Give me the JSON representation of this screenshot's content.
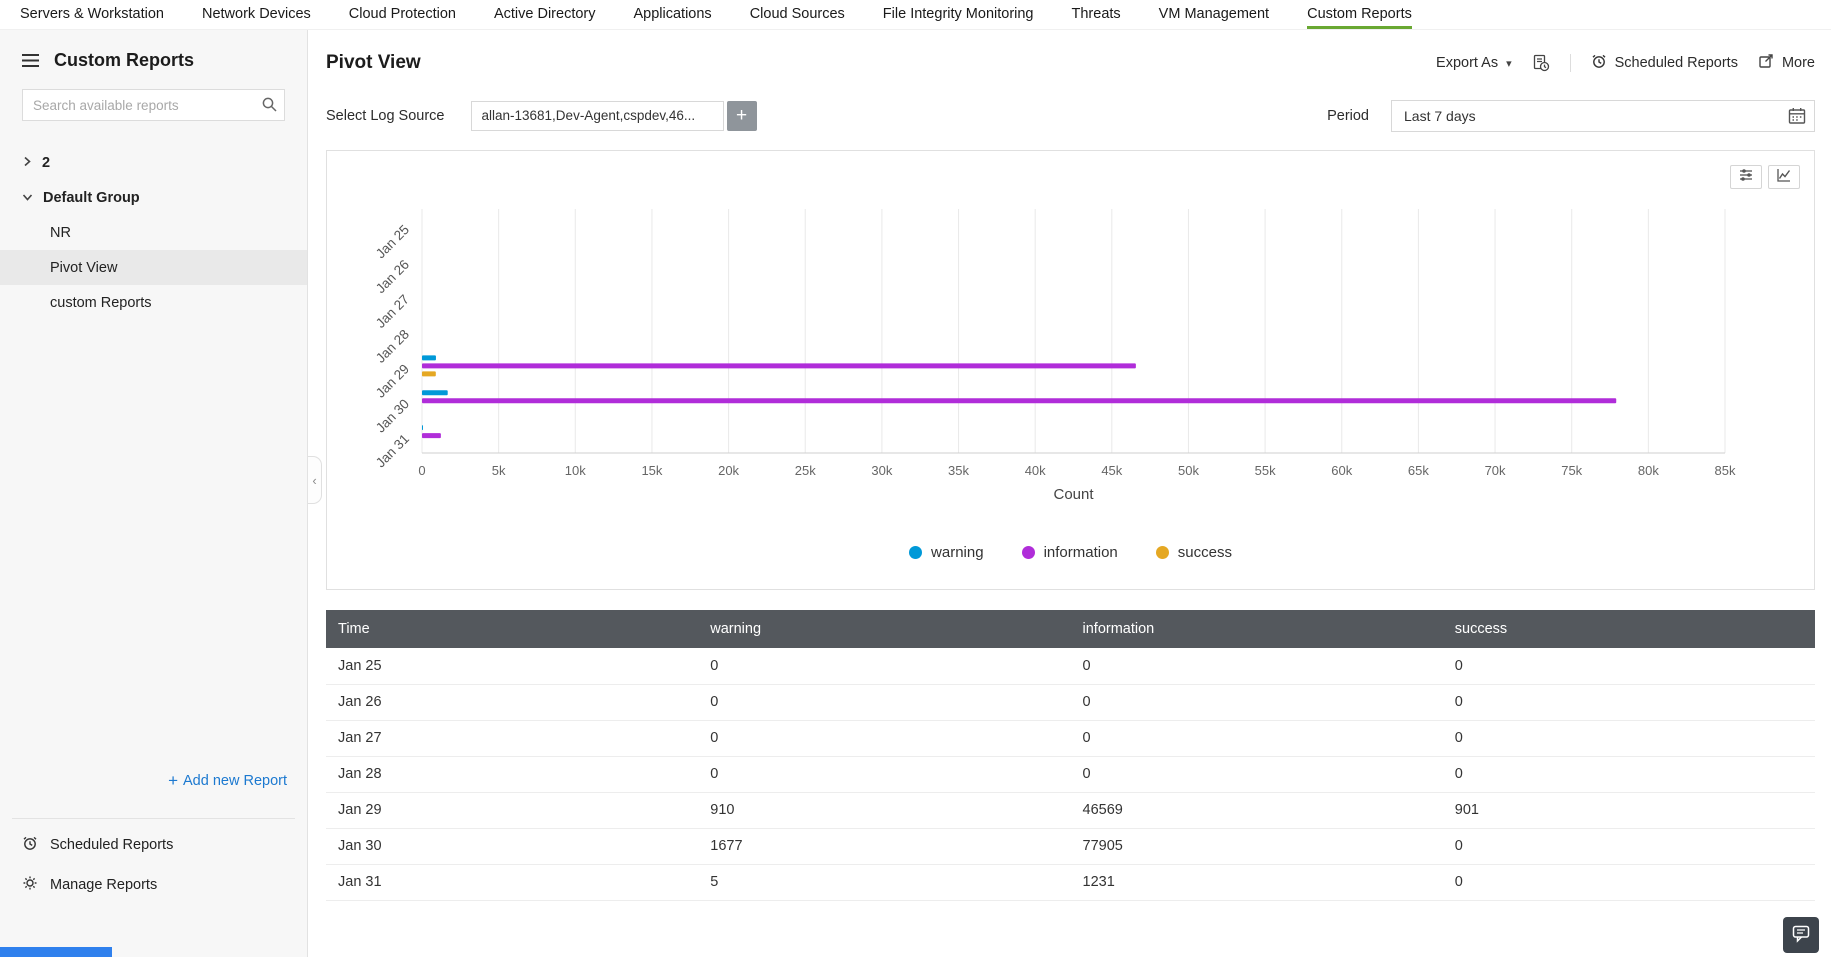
{
  "nav": {
    "items": [
      {
        "label": "Servers & Workstation",
        "active": false
      },
      {
        "label": "Network Devices",
        "active": false
      },
      {
        "label": "Cloud Protection",
        "active": false
      },
      {
        "label": "Active Directory",
        "active": false
      },
      {
        "label": "Applications",
        "active": false
      },
      {
        "label": "Cloud Sources",
        "active": false
      },
      {
        "label": "File Integrity Monitoring",
        "active": false
      },
      {
        "label": "Threats",
        "active": false
      },
      {
        "label": "VM Management",
        "active": false
      },
      {
        "label": "Custom Reports",
        "active": true
      }
    ],
    "active_underline_color": "#69a832"
  },
  "sidebar": {
    "title": "Custom Reports",
    "search_placeholder": "Search available reports",
    "tree": [
      {
        "label": "2",
        "type": "group-collapsed",
        "selected": false,
        "indent": 0
      },
      {
        "label": "Default Group",
        "type": "group-expanded",
        "selected": false,
        "indent": 0
      },
      {
        "label": "NR",
        "type": "report",
        "selected": false,
        "indent": 1
      },
      {
        "label": "Pivot View",
        "type": "report",
        "selected": true,
        "indent": 1
      },
      {
        "label": "custom Reports",
        "type": "report",
        "selected": false,
        "indent": 1
      }
    ],
    "add_new_report": "Add new Report",
    "footer": [
      {
        "label": "Scheduled Reports",
        "icon": "alarm-icon"
      },
      {
        "label": "Manage Reports",
        "icon": "gear-icon"
      }
    ]
  },
  "main": {
    "title": "Pivot View",
    "toolbar": {
      "export_as": "Export As",
      "scheduled_reports": "Scheduled Reports",
      "more": "More"
    },
    "filters": {
      "log_source_label": "Select Log Source",
      "log_source_value": "allan-13681,Dev-Agent,cspdev,46...",
      "period_label": "Period",
      "period_value": "Last 7 days"
    }
  },
  "chart_data": {
    "type": "bar",
    "orientation": "horizontal",
    "title": "",
    "categories": [
      "Jan 25",
      "Jan 26",
      "Jan 27",
      "Jan 28",
      "Jan 29",
      "Jan 30",
      "Jan 31"
    ],
    "series": [
      {
        "name": "warning",
        "color": "#0099d8",
        "values": [
          0,
          0,
          0,
          0,
          910,
          1677,
          5
        ]
      },
      {
        "name": "information",
        "color": "#b02dd9",
        "values": [
          0,
          0,
          0,
          0,
          46569,
          77905,
          1231
        ]
      },
      {
        "name": "success",
        "color": "#e5a823",
        "values": [
          0,
          0,
          0,
          0,
          901,
          0,
          0
        ]
      }
    ],
    "xlabel": "Count",
    "ylabel": "",
    "xlim": [
      0,
      85000
    ],
    "x_tick_step": 5000,
    "x_tick_labels": [
      "0",
      "5k",
      "10k",
      "15k",
      "20k",
      "25k",
      "30k",
      "35k",
      "40k",
      "45k",
      "50k",
      "55k",
      "60k",
      "65k",
      "70k",
      "75k",
      "80k",
      "85k"
    ],
    "grid": true,
    "legend_position": "bottom"
  },
  "table": {
    "columns": [
      "Time",
      "warning",
      "information",
      "success"
    ],
    "rows": [
      [
        "Jan 25",
        "0",
        "0",
        "0"
      ],
      [
        "Jan 26",
        "0",
        "0",
        "0"
      ],
      [
        "Jan 27",
        "0",
        "0",
        "0"
      ],
      [
        "Jan 28",
        "0",
        "0",
        "0"
      ],
      [
        "Jan 29",
        "910",
        "46569",
        "901"
      ],
      [
        "Jan 30",
        "1677",
        "77905",
        "0"
      ],
      [
        "Jan 31",
        "5",
        "1231",
        "0"
      ]
    ]
  },
  "icons": {
    "caret_down": "▾",
    "chevron_left": "‹",
    "plus": "+"
  }
}
